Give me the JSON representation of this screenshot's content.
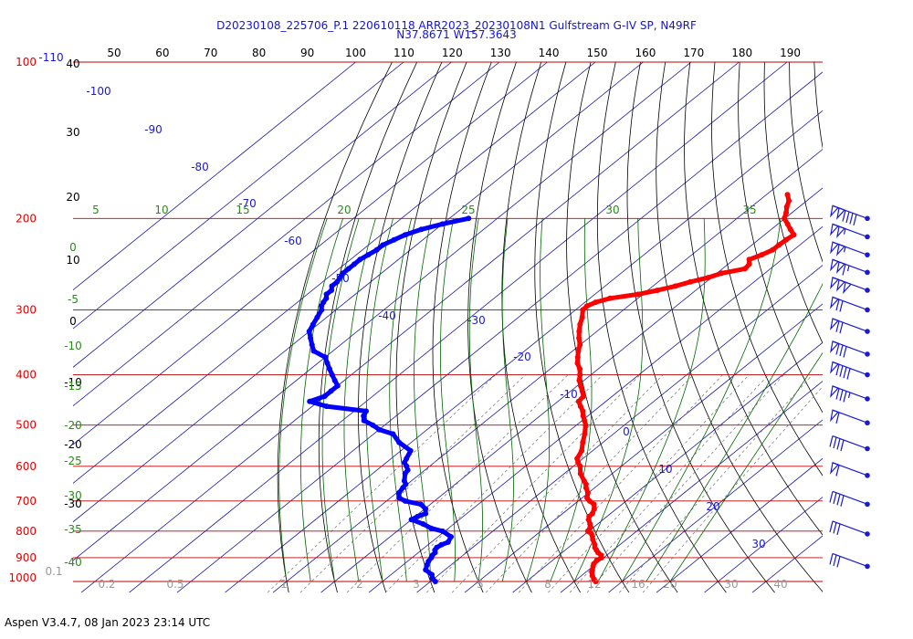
{
  "header": {
    "title_line1": "D20230108_225706_P.1 220610118 ARR2023_20230108N1 Gulfstream G-IV SP, N49RF",
    "title_line2": "N37.8671 W157.3643"
  },
  "footer": {
    "text": "Aspen V3.4.7, 08 Jan 2023  23:14 UTC"
  },
  "chart_data": {
    "type": "line",
    "chart_kind": "skew-T log-P sounding",
    "title": "D20230108_225706_P.1 220610118 ARR2023_20230108N1 Gulfstream G-IV SP, N49RF",
    "subtitle": "N37.8671 W157.3643",
    "y_axis": {
      "scale": "log",
      "range": [
        1000,
        100
      ],
      "ticks": [
        "100",
        "200",
        "300",
        "400",
        "500",
        "600",
        "700",
        "800",
        "900",
        "1000"
      ]
    },
    "top_axis_ticks": [
      "50",
      "60",
      "70",
      "80",
      "90",
      "100",
      "110",
      "120",
      "130",
      "140",
      "150",
      "160",
      "170",
      "180",
      "190"
    ],
    "left_height_labels": [
      "40",
      "30",
      "20",
      "10",
      "0",
      "-10",
      "-20",
      "-30"
    ],
    "temperature_labels": [
      "-110",
      "-100",
      "-90",
      "-80",
      "-70",
      "-60",
      "-50",
      "-40",
      "-30",
      "-20",
      "-10",
      "0",
      "10",
      "20",
      "30"
    ],
    "dry_adiabat_labels": [
      "5",
      "10",
      "15",
      "20",
      "25",
      "30",
      "35"
    ],
    "moist_adiabat_labels": [
      "0",
      "-5",
      "-10",
      "-15",
      "-20",
      "-25",
      "-30",
      "-35",
      "-40"
    ],
    "mixing_ratio_labels": [
      "0.1",
      "0.2",
      "0.5",
      "1",
      "2",
      "3",
      "5",
      "8",
      "12",
      "16",
      "20",
      "30",
      "40"
    ],
    "colors": {
      "temperature": "#ff0000",
      "dewpoint": "#0000ff",
      "isobar": "#c00000",
      "isotherm": "#1a1aa0",
      "dry_adiabat": "#000000",
      "moist_adiabat": "#006400",
      "mixing_ratio": "#707070",
      "title": "#1414d8"
    },
    "series": [
      {
        "name": "",
        "pressure": [
          1000,
          990,
          975,
          960,
          950,
          935,
          925,
          910,
          900,
          890,
          880,
          870,
          860,
          850,
          830,
          810,
          800,
          790,
          775,
          760,
          750,
          740,
          725,
          710,
          700,
          690,
          675,
          660,
          650,
          640,
          620,
          600,
          590,
          580,
          560,
          540,
          520,
          500,
          490,
          480,
          470,
          460,
          450,
          440,
          430,
          420,
          410,
          400,
          390,
          380,
          370,
          360,
          350,
          340,
          330,
          320,
          310,
          300,
          295,
          290,
          285,
          280,
          275,
          270,
          265,
          260,
          255,
          250,
          245,
          240,
          235,
          230,
          225,
          220,
          215,
          210,
          205,
          200,
          195,
          190,
          185,
          180
        ],
        "temperature": [
          24.5,
          23.5,
          22.3,
          21.3,
          20.8,
          20.0,
          19.5,
          19.2,
          19.5,
          18.8,
          17.5,
          16.5,
          15.5,
          14.8,
          13.0,
          11.3,
          9.8,
          9.5,
          8.4,
          7.0,
          6.3,
          6.2,
          5.4,
          4.1,
          2.4,
          1.0,
          -0.1,
          -1.8,
          -2.7,
          -4.0,
          -6.6,
          -8.6,
          -10.0,
          -11.2,
          -12.3,
          -14.2,
          -16.0,
          -18.1,
          -19.5,
          -21.0,
          -22.3,
          -24.0,
          -25.7,
          -26.0,
          -27.6,
          -29.3,
          -31.0,
          -32.3,
          -33.8,
          -35.8,
          -37.3,
          -38.8,
          -40.1,
          -42.0,
          -43.7,
          -45.3,
          -46.7,
          -48.5,
          -48.6,
          -47.8,
          -45.8,
          -41.0,
          -38.0,
          -35.3,
          -33.3,
          -30.7,
          -29.0,
          -25.3,
          -25.6,
          -26.8,
          -25.4,
          -24.4,
          -24.4,
          -24.2,
          -23.9,
          -26.0,
          -28.0,
          -30.1,
          -31.2,
          -32.6,
          -33.7,
          -35.6
        ]
      },
      {
        "name": "",
        "pressure": [
          1000,
          985,
          970,
          950,
          930,
          915,
          900,
          890,
          880,
          870,
          860,
          850,
          840,
          820,
          800,
          790,
          775,
          760,
          750,
          740,
          725,
          710,
          700,
          690,
          675,
          660,
          650,
          640,
          620,
          610,
          600,
          590,
          580,
          560,
          540,
          520,
          510,
          500,
          490,
          480,
          470,
          460,
          450,
          440,
          430,
          420,
          410,
          400,
          390,
          380,
          370,
          360,
          350,
          340,
          330,
          320,
          310,
          300,
          295,
          290,
          285,
          280,
          275,
          270,
          265,
          260,
          255,
          250,
          245,
          240,
          235,
          230,
          225,
          220,
          215,
          210,
          205,
          200
        ],
        "dewpoint": [
          -9.0,
          -10.5,
          -11.5,
          -14.0,
          -15.0,
          -15.6,
          -16.0,
          -16.4,
          -16.5,
          -17.2,
          -17.5,
          -17.2,
          -16.5,
          -17.3,
          -20.5,
          -23.6,
          -26.4,
          -30.0,
          -29.5,
          -28.6,
          -29.8,
          -32.0,
          -36.1,
          -38.2,
          -39.5,
          -40.0,
          -40.3,
          -41.5,
          -43.2,
          -43.6,
          -44.8,
          -46.2,
          -46.8,
          -48.0,
          -52.5,
          -56.0,
          -60.0,
          -62.5,
          -65.5,
          -66.8,
          -67.5,
          -77.0,
          -81.8,
          -80.0,
          -80.0,
          -80.0,
          -82.0,
          -84.0,
          -86.0,
          -88.0,
          -90.0,
          -94.0,
          -96.0,
          -98.0,
          -100.0,
          -101.0,
          -102.0,
          -103.0,
          -104.0,
          -104.6,
          -105.0,
          -106.0,
          -106.0,
          -107.0,
          -107.0,
          -107.5,
          -108.0,
          -108.0,
          -108.0,
          -108.0,
          -107.5,
          -107.0,
          -107.0,
          -106.0,
          -105.0,
          -103.0,
          -100.0,
          -96.0
        ]
      }
    ],
    "wind_barbs": [
      {
        "pressure": 200,
        "speed_kt": 140
      },
      {
        "pressure": 217,
        "speed_kt": 105
      },
      {
        "pressure": 235,
        "speed_kt": 105
      },
      {
        "pressure": 254,
        "speed_kt": 115
      },
      {
        "pressure": 275,
        "speed_kt": 150
      },
      {
        "pressure": 300,
        "speed_kt": 70
      },
      {
        "pressure": 330,
        "speed_kt": 70
      },
      {
        "pressure": 365,
        "speed_kt": 80
      },
      {
        "pressure": 400,
        "speed_kt": 90
      },
      {
        "pressure": 445,
        "speed_kt": 85
      },
      {
        "pressure": 495,
        "speed_kt": 60
      },
      {
        "pressure": 555,
        "speed_kt": 40
      },
      {
        "pressure": 625,
        "speed_kt": 60
      },
      {
        "pressure": 710,
        "speed_kt": 40
      },
      {
        "pressure": 810,
        "speed_kt": 30
      },
      {
        "pressure": 935,
        "speed_kt": 30
      }
    ]
  }
}
